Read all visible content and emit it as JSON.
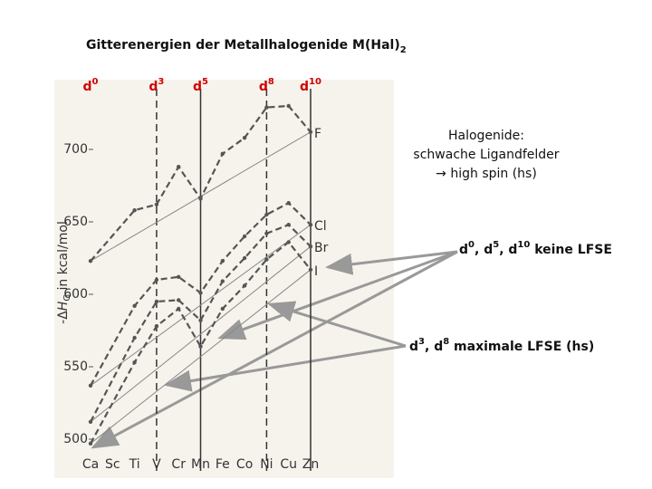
{
  "chart_data": {
    "type": "line",
    "title": "Gitterenergien der Metallhalogenide M(Hal)",
    "title_subscript": "2",
    "y_label_parts": [
      "-Δ",
      "H",
      "G",
      " in kcal/mol"
    ],
    "x": [
      20,
      22,
      23,
      24,
      25,
      26,
      27,
      28,
      29,
      30
    ],
    "xlim": [
      20,
      30
    ],
    "xticks": [
      {
        "value": 20,
        "label": "Ca"
      },
      {
        "value": 21,
        "label": "Sc"
      },
      {
        "value": 22,
        "label": "Ti"
      },
      {
        "value": 23,
        "label": "V"
      },
      {
        "value": 24,
        "label": "Cr"
      },
      {
        "value": 25,
        "label": "Mn"
      },
      {
        "value": 26,
        "label": "Fe"
      },
      {
        "value": 27,
        "label": "Co"
      },
      {
        "value": 28,
        "label": "Ni"
      },
      {
        "value": 29,
        "label": "Cu"
      },
      {
        "value": 30,
        "label": "Zn"
      }
    ],
    "ylim": [
      490,
      740
    ],
    "yticks": [
      500,
      550,
      600,
      650,
      700
    ],
    "configurations": [
      {
        "x": 20,
        "base": "d",
        "sup": "0",
        "line": "none"
      },
      {
        "x": 23,
        "base": "d",
        "sup": "3",
        "line": "dashed"
      },
      {
        "x": 25,
        "base": "d",
        "sup": "5",
        "line": "solid"
      },
      {
        "x": 28,
        "base": "d",
        "sup": "8",
        "line": "dashed"
      },
      {
        "x": 30,
        "base": "d",
        "sup": "10",
        "line": "solid"
      }
    ],
    "series": [
      {
        "name": "F",
        "color": "#555555",
        "values": [
          623,
          658,
          662,
          688,
          666,
          697,
          708,
          729,
          730,
          712
        ]
      },
      {
        "name": "Cl",
        "color": "#555555",
        "values": [
          537,
          592,
          610,
          612,
          601,
          623,
          640,
          655,
          663,
          648
        ]
      },
      {
        "name": "Br",
        "color": "#555555",
        "values": [
          512,
          570,
          595,
          596,
          582,
          609,
          625,
          642,
          648,
          633
        ]
      },
      {
        "name": "I",
        "color": "#555555",
        "values": [
          497,
          553,
          578,
          590,
          564,
          590,
          606,
          624,
          636,
          617
        ]
      }
    ],
    "annotations": {
      "halogenide": [
        "Halogenide:",
        "schwache Ligandfelder",
        "→ high spin (hs)"
      ],
      "no_lfse": [
        "d",
        "0",
        ", d",
        "5",
        ", d",
        "10",
        "  keine LFSE"
      ],
      "max_lfse": [
        "d",
        "3",
        ", d",
        "8",
        " maximale LFSE (hs)"
      ]
    }
  }
}
